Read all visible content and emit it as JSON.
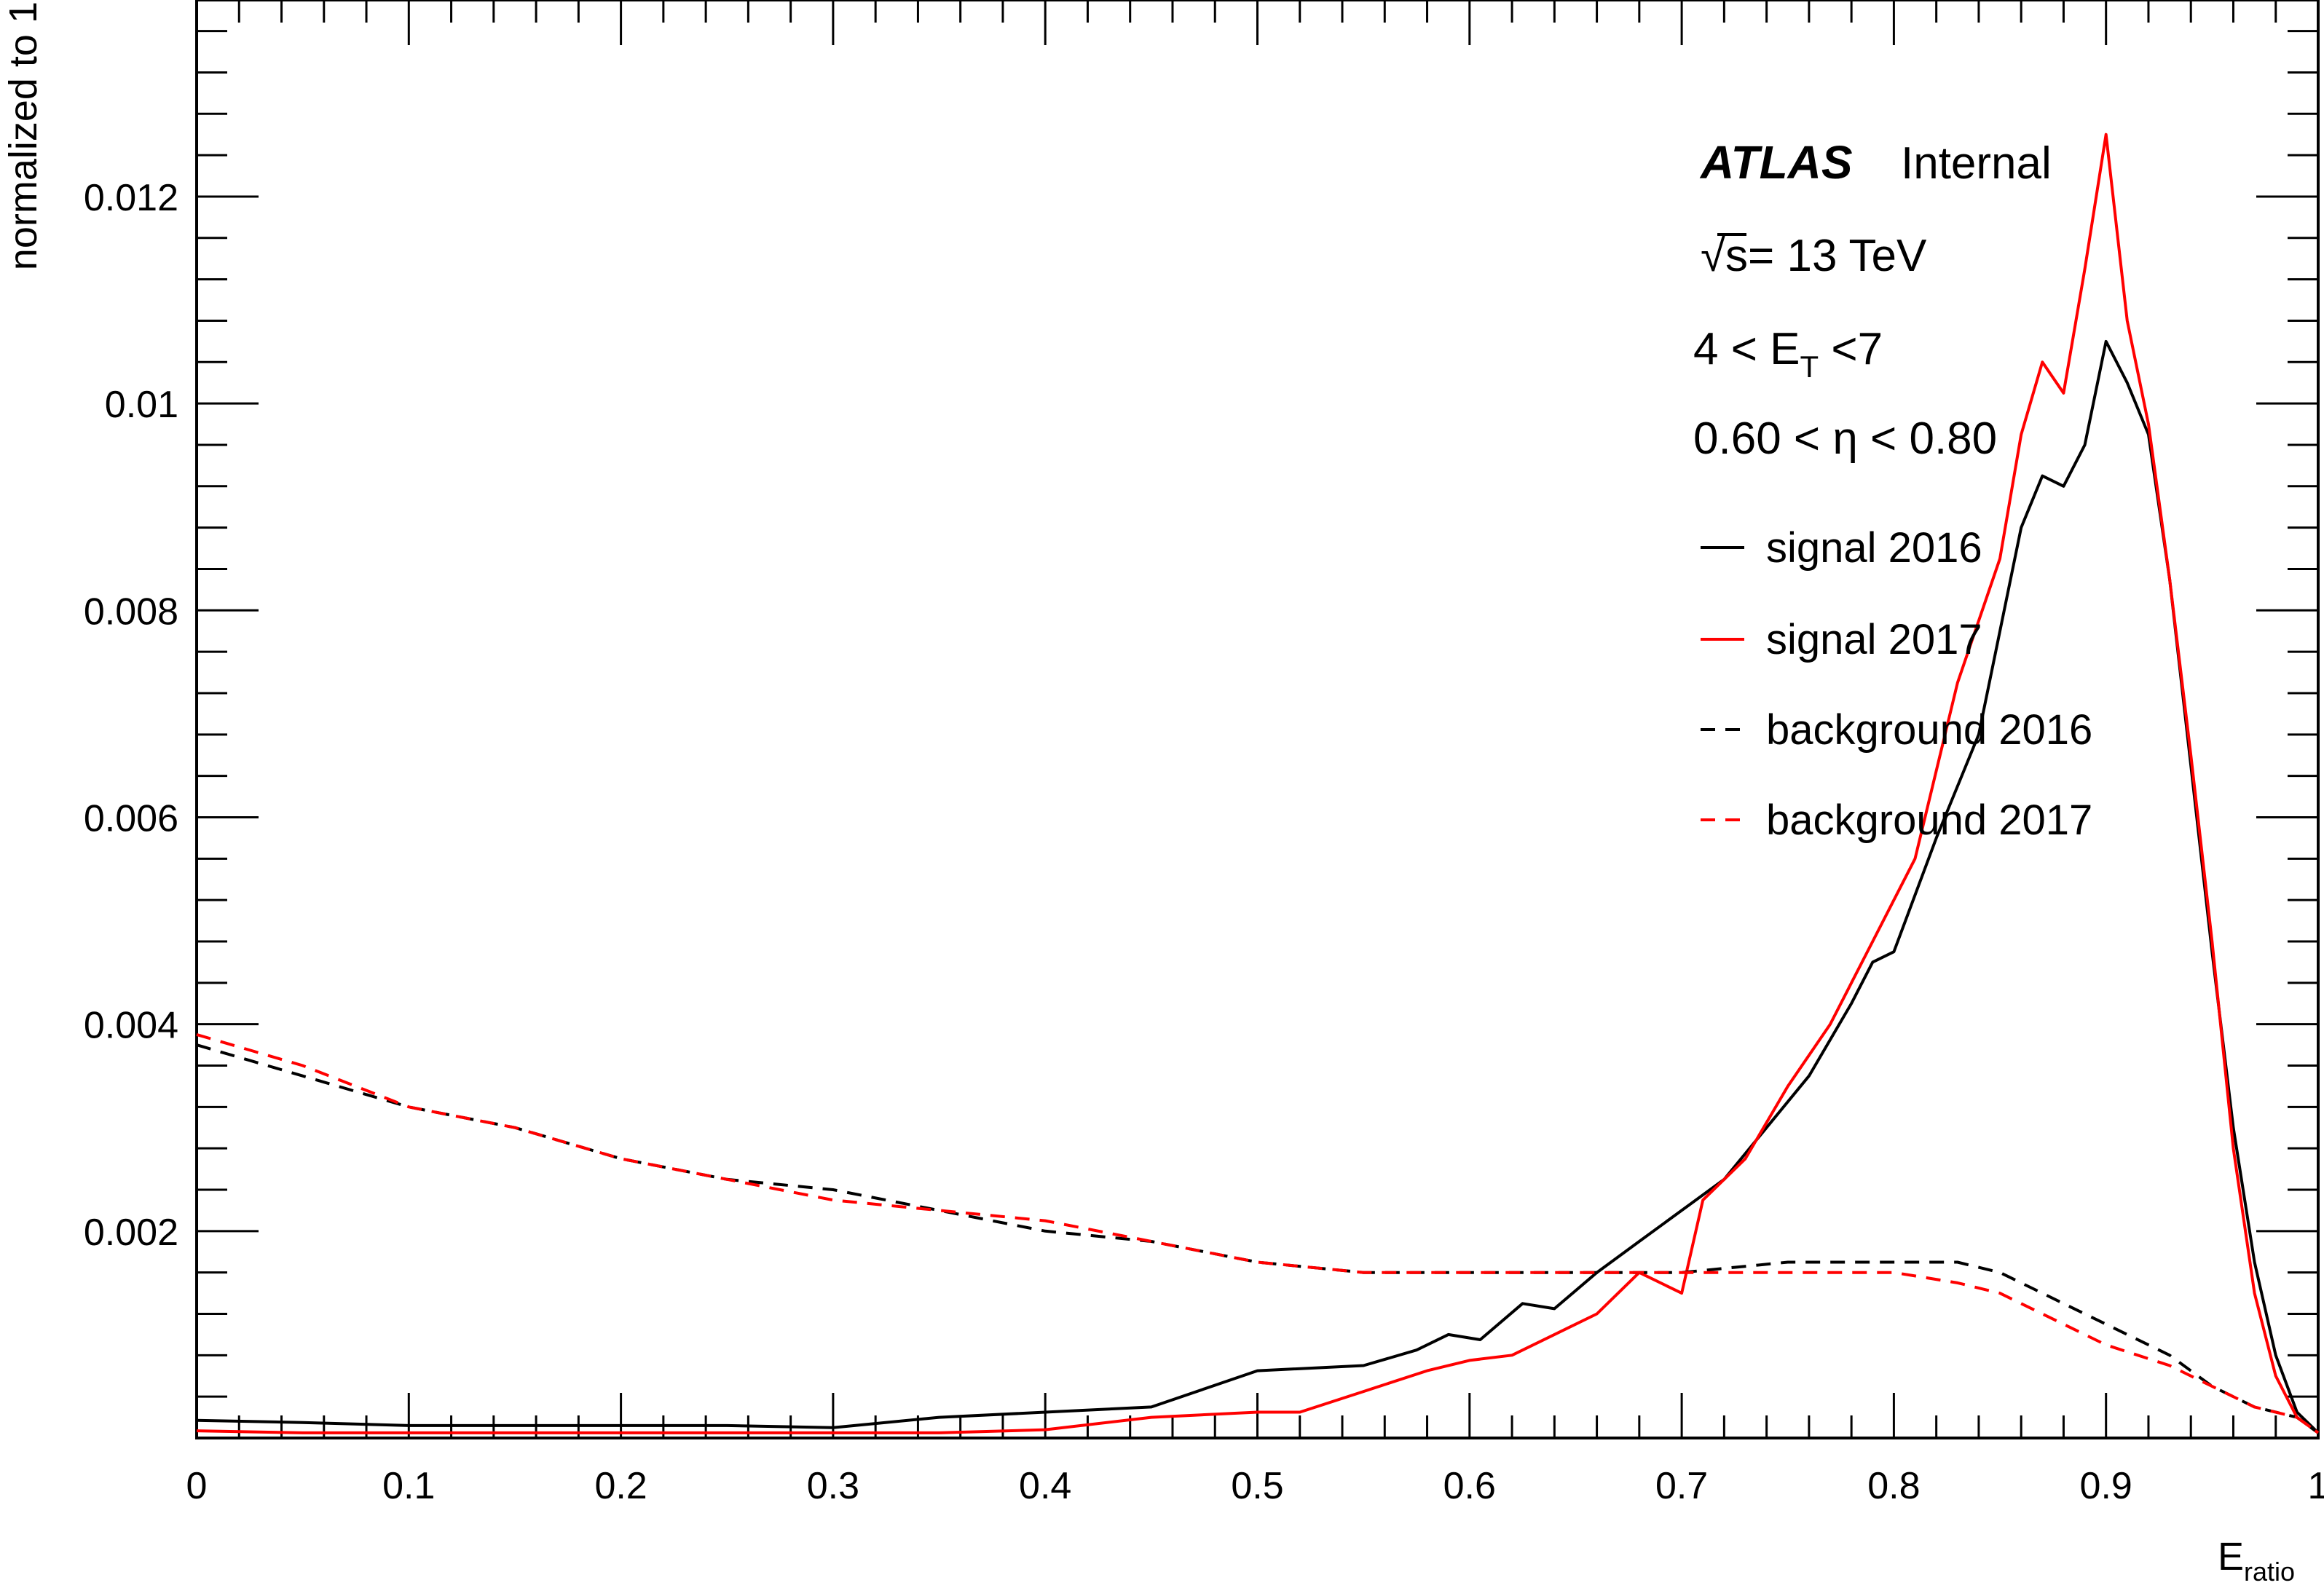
{
  "chart_data": {
    "type": "line",
    "xlabel": "E",
    "xlabel_sub": "ratio",
    "ylabel": "normalized to 1",
    "xlim": [
      0,
      1
    ],
    "ylim": [
      0,
      0.0139
    ],
    "x_ticks": [
      "0",
      "0.1",
      "0.2",
      "0.3",
      "0.4",
      "0.5",
      "0.6",
      "0.7",
      "0.8",
      "0.9",
      "1"
    ],
    "y_ticks": [
      "0.002",
      "0.004",
      "0.006",
      "0.008",
      "0.01",
      "0.012"
    ],
    "legend_position": "top-right",
    "annotations": {
      "experiment": "ATLAS",
      "status": "Internal",
      "energy_sqrt": "√",
      "energy_rest": "s= 13 TeV",
      "et_prefix": "4 < E",
      "et_sub": "T",
      "et_suffix": " <7",
      "eta": "0.60 < η < 0.80"
    },
    "series": [
      {
        "name": "signal 2016",
        "color": "#000000",
        "style": "solid",
        "x": [
          0.0,
          0.05,
          0.1,
          0.15,
          0.2,
          0.25,
          0.3,
          0.35,
          0.4,
          0.45,
          0.5,
          0.55,
          0.575,
          0.59,
          0.605,
          0.625,
          0.64,
          0.66,
          0.68,
          0.7,
          0.72,
          0.74,
          0.76,
          0.78,
          0.79,
          0.8,
          0.82,
          0.84,
          0.86,
          0.87,
          0.88,
          0.89,
          0.9,
          0.91,
          0.92,
          0.93,
          0.94,
          0.95,
          0.96,
          0.97,
          0.98,
          0.99,
          1.0
        ],
        "y": [
          0.00017,
          0.00015,
          0.00012,
          0.00012,
          0.00012,
          0.00012,
          0.0001,
          0.0002,
          0.00025,
          0.0003,
          0.00065,
          0.0007,
          0.00085,
          0.001,
          0.00095,
          0.0013,
          0.00125,
          0.0016,
          0.0019,
          0.0022,
          0.0025,
          0.003,
          0.0035,
          0.0042,
          0.0046,
          0.0047,
          0.0058,
          0.0068,
          0.0088,
          0.0093,
          0.0092,
          0.0096,
          0.0106,
          0.0102,
          0.0097,
          0.0083,
          0.0065,
          0.0047,
          0.003,
          0.0017,
          0.0008,
          0.00025,
          5e-05
        ]
      },
      {
        "name": "signal 2017",
        "color": "#ff0000",
        "style": "solid",
        "x": [
          0.0,
          0.05,
          0.1,
          0.15,
          0.2,
          0.25,
          0.3,
          0.35,
          0.4,
          0.45,
          0.5,
          0.52,
          0.55,
          0.58,
          0.6,
          0.62,
          0.64,
          0.66,
          0.68,
          0.7,
          0.71,
          0.73,
          0.75,
          0.77,
          0.79,
          0.81,
          0.83,
          0.85,
          0.86,
          0.87,
          0.88,
          0.89,
          0.9,
          0.91,
          0.92,
          0.93,
          0.94,
          0.95,
          0.96,
          0.97,
          0.98,
          0.99,
          1.0
        ],
        "y": [
          7e-05,
          5e-05,
          5e-05,
          5e-05,
          5e-05,
          5e-05,
          5e-05,
          5e-05,
          8e-05,
          0.0002,
          0.00025,
          0.00025,
          0.00045,
          0.00065,
          0.00075,
          0.0008,
          0.001,
          0.0012,
          0.0016,
          0.0014,
          0.0023,
          0.0027,
          0.0034,
          0.004,
          0.0048,
          0.0056,
          0.0073,
          0.0085,
          0.0097,
          0.0104,
          0.0101,
          0.0113,
          0.0126,
          0.0108,
          0.0098,
          0.0083,
          0.0066,
          0.0048,
          0.0028,
          0.0014,
          0.0006,
          0.0002,
          5e-05
        ]
      },
      {
        "name": "background 2016",
        "color": "#000000",
        "style": "dashed",
        "x": [
          0.0,
          0.05,
          0.1,
          0.15,
          0.2,
          0.25,
          0.3,
          0.35,
          0.4,
          0.45,
          0.5,
          0.55,
          0.6,
          0.65,
          0.7,
          0.75,
          0.8,
          0.83,
          0.85,
          0.88,
          0.9,
          0.93,
          0.95,
          0.97,
          0.99,
          1.0
        ],
        "y": [
          0.0038,
          0.0035,
          0.0032,
          0.003,
          0.0027,
          0.0025,
          0.0024,
          0.0022,
          0.002,
          0.0019,
          0.0017,
          0.0016,
          0.0016,
          0.0016,
          0.0016,
          0.0017,
          0.0017,
          0.0017,
          0.0016,
          0.0013,
          0.0011,
          0.0008,
          0.0005,
          0.0003,
          0.0002,
          5e-05
        ]
      },
      {
        "name": "background 2017",
        "color": "#ff0000",
        "style": "dashed",
        "x": [
          0.0,
          0.05,
          0.1,
          0.15,
          0.2,
          0.25,
          0.3,
          0.35,
          0.4,
          0.45,
          0.5,
          0.55,
          0.6,
          0.65,
          0.7,
          0.75,
          0.8,
          0.83,
          0.85,
          0.88,
          0.9,
          0.93,
          0.95,
          0.97,
          0.99,
          1.0
        ],
        "y": [
          0.0039,
          0.0036,
          0.0032,
          0.003,
          0.0027,
          0.0025,
          0.0023,
          0.0022,
          0.0021,
          0.0019,
          0.0017,
          0.0016,
          0.0016,
          0.0016,
          0.0016,
          0.0016,
          0.0016,
          0.0015,
          0.0014,
          0.0011,
          0.0009,
          0.0007,
          0.0005,
          0.0003,
          0.0002,
          5e-05
        ]
      }
    ]
  }
}
